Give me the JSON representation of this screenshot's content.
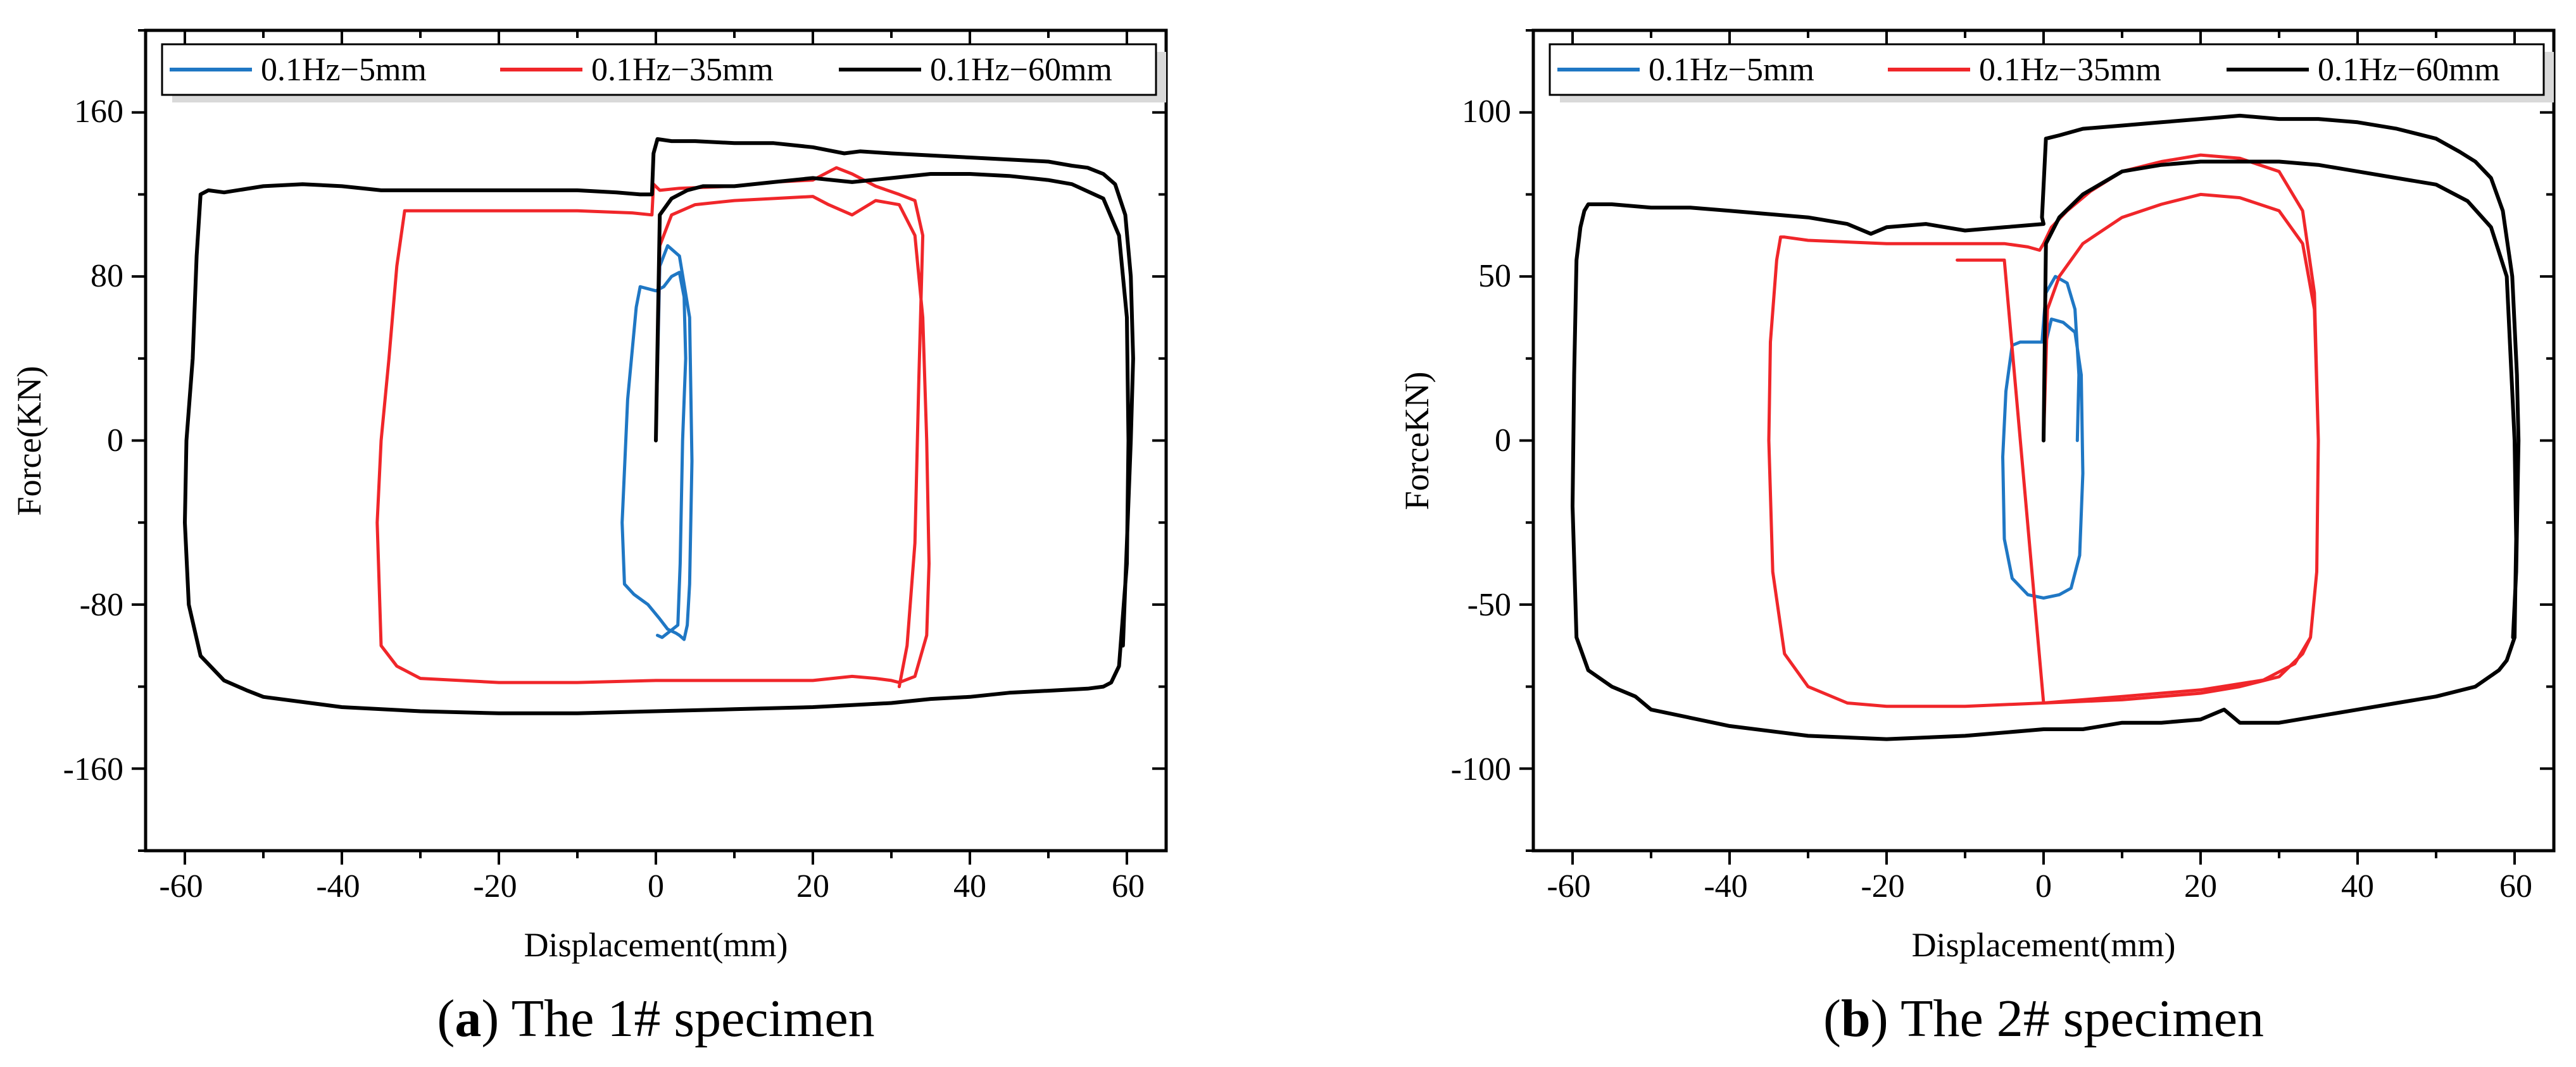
{
  "chart_data": [
    {
      "type": "line",
      "panel_id": "a",
      "caption_letter": "a",
      "caption_text": " The 1# specimen",
      "xlabel": "Displacement(mm)",
      "ylabel": "Force(KN)",
      "xlim": [
        -65,
        65
      ],
      "ylim": [
        -200,
        200
      ],
      "xticks": [
        -60,
        -40,
        -20,
        0,
        20,
        40,
        60
      ],
      "yticks": [
        -160,
        -80,
        0,
        80,
        160
      ],
      "xtick_labels": [
        "-60",
        "-40",
        "-20",
        "0",
        "20",
        "40",
        "60"
      ],
      "ytick_labels": [
        "-160",
        "-80",
        "0",
        "80",
        "160"
      ],
      "legend_position": "top",
      "series": [
        {
          "name": "0.1Hz−5mm",
          "color": "#1f77c4",
          "x": [
            0,
            0.5,
            1.5,
            3,
            4.3,
            4.6,
            4.3,
            4.0,
            3.6,
            3.0,
            2.6,
            1.5,
            0.5,
            -1,
            -2.8,
            -4.0,
            -4.3,
            -3.6,
            -2.5,
            -2.0,
            -1.0,
            0,
            1.0,
            2.0,
            3.0,
            3.6,
            3.8,
            3.4,
            3.1,
            2.8,
            0.8,
            0.2
          ],
          "y": [
            0,
            85,
            95,
            90,
            60,
            -10,
            -70,
            -90,
            -97,
            -95,
            -94,
            -92,
            -87,
            -80,
            -75,
            -70,
            -40,
            20,
            65,
            75,
            74,
            73,
            75,
            80,
            82,
            70,
            40,
            0,
            -60,
            -90,
            -96,
            -95
          ]
        },
        {
          "name": "0.1Hz−35mm",
          "color": "#f0262a",
          "x": [
            0,
            0.5,
            2,
            5,
            10,
            15,
            20,
            22,
            25,
            28,
            31,
            33,
            34,
            34.5,
            34.8,
            34.5,
            33,
            31,
            30,
            28,
            25,
            20,
            10,
            0,
            -10,
            -20,
            -30,
            -33,
            -35,
            -35.5,
            -35,
            -34,
            -33,
            -32,
            -30,
            -25,
            -20,
            -10,
            -3,
            -0.5,
            -0.3,
            0.5,
            3,
            10,
            15,
            20,
            23,
            25,
            28,
            31,
            33,
            34,
            33.5,
            33,
            32,
            31
          ],
          "y": [
            0,
            95,
            110,
            115,
            117,
            118,
            119,
            115,
            110,
            117,
            115,
            100,
            60,
            0,
            -60,
            -95,
            -115,
            -118,
            -117,
            -116,
            -115,
            -117,
            -117,
            -117,
            -118,
            -118,
            -116,
            -110,
            -100,
            -40,
            0,
            40,
            85,
            112,
            112,
            112,
            112,
            112,
            111,
            110,
            125,
            122,
            123,
            124,
            126,
            127,
            133,
            130,
            124,
            120,
            117,
            100,
            30,
            -50,
            -100,
            -120
          ]
        },
        {
          "name": "0.1Hz−60mm",
          "color": "#000000",
          "x": [
            0,
            0.5,
            2,
            4,
            6,
            10,
            15,
            20,
            25,
            30,
            35,
            40,
            45,
            50,
            53,
            57,
            59,
            60,
            60.2,
            60,
            59,
            58,
            57,
            55,
            50,
            45,
            40,
            35,
            30,
            25,
            20,
            10,
            0,
            -10,
            -20,
            -30,
            -40,
            -50,
            -52,
            -55,
            -58,
            -59.5,
            -60,
            -59.8,
            -59,
            -58.5,
            -58,
            -57,
            -55,
            -50,
            -45,
            -40,
            -35,
            -30,
            -20,
            -10,
            -5,
            -2,
            -0.5,
            -0.3,
            0.2,
            2,
            5,
            10,
            15,
            20,
            24,
            26,
            30,
            35,
            40,
            45,
            50,
            53,
            55,
            57,
            58.5,
            59.8,
            60.5,
            60.8,
            60.5,
            60,
            59.5
          ],
          "y": [
            0,
            110,
            118,
            122,
            124,
            124,
            126,
            128,
            126,
            128,
            130,
            130,
            129,
            127,
            125,
            118,
            100,
            60,
            0,
            -60,
            -110,
            -118,
            -120,
            -121,
            -122,
            -123,
            -125,
            -126,
            -128,
            -129,
            -130,
            -131,
            -132,
            -133,
            -133,
            -132,
            -130,
            -125,
            -122,
            -117,
            -105,
            -80,
            -40,
            0,
            40,
            90,
            120,
            122,
            121,
            124,
            125,
            124,
            122,
            122,
            122,
            122,
            121,
            120,
            120,
            140,
            147,
            146,
            146,
            145,
            145,
            143,
            140,
            141,
            140,
            139,
            138,
            137,
            136,
            134,
            133,
            130,
            125,
            110,
            80,
            40,
            0,
            -50,
            -100
          ]
        }
      ]
    },
    {
      "type": "line",
      "panel_id": "b",
      "caption_letter": "b",
      "caption_text": " The 2# specimen",
      "xlabel": "Displacement(mm)",
      "ylabel": "ForceKN)",
      "xlim": [
        -65,
        65
      ],
      "ylim": [
        -125,
        125
      ],
      "xticks": [
        -60,
        -40,
        -20,
        0,
        20,
        40,
        60
      ],
      "yticks": [
        -100,
        -50,
        0,
        50,
        100
      ],
      "xtick_labels": [
        "-60",
        "-40",
        "-20",
        "0",
        "20",
        "40",
        "60"
      ],
      "ytick_labels": [
        "-100",
        "-50",
        "0",
        "50",
        "100"
      ],
      "legend_position": "top",
      "series": [
        {
          "name": "0.1Hz−5mm",
          "color": "#1f77c4",
          "x": [
            0,
            0.3,
            1,
            2.5,
            4,
            4.8,
            5,
            4.6,
            3.5,
            2,
            0,
            -2,
            -4,
            -5,
            -5.2,
            -4.8,
            -4,
            -3,
            -2,
            -1,
            -0.2,
            0.3,
            1.5,
            3,
            4,
            4.5,
            4.3
          ],
          "y": [
            0,
            30,
            37,
            36,
            33,
            20,
            -10,
            -35,
            -45,
            -47,
            -48,
            -47,
            -42,
            -30,
            -5,
            15,
            29,
            30,
            30,
            30,
            30,
            45,
            50,
            48,
            40,
            20,
            0
          ]
        },
        {
          "name": "0.1Hz−35mm",
          "color": "#f0262a",
          "x": [
            0,
            0.5,
            2,
            5,
            10,
            15,
            20,
            25,
            30,
            33,
            34.5,
            35,
            34.8,
            34,
            33,
            30,
            25,
            20,
            10,
            0,
            -10,
            -20,
            -25,
            -30,
            -33,
            -34.5,
            -35,
            -34.8,
            -34,
            -33.5,
            -33,
            -30,
            -20,
            -10,
            -5,
            -2,
            -0.5,
            0,
            1,
            3,
            6,
            10,
            15,
            20,
            25,
            30,
            33,
            34.5,
            35,
            34.8,
            34,
            32,
            28,
            20,
            10,
            0,
            -5,
            -10,
            -11
          ],
          "y": [
            0,
            40,
            50,
            60,
            68,
            72,
            75,
            74,
            70,
            60,
            40,
            0,
            -40,
            -60,
            -65,
            -72,
            -75,
            -77,
            -79,
            -80,
            -81,
            -81,
            -80,
            -75,
            -65,
            -40,
            0,
            30,
            55,
            62,
            62,
            61,
            60,
            60,
            60,
            59,
            58,
            60,
            65,
            70,
            76,
            82,
            85,
            87,
            86,
            82,
            70,
            45,
            0,
            -40,
            -60,
            -68,
            -73,
            -76,
            -78,
            -80,
            55,
            55,
            55
          ]
        },
        {
          "name": "0.1Hz−60mm",
          "color": "#000000",
          "x": [
            0,
            0.3,
            2,
            5,
            10,
            15,
            20,
            25,
            30,
            35,
            40,
            45,
            50,
            54,
            57,
            59,
            60,
            60.2,
            60,
            59,
            58,
            55,
            50,
            45,
            40,
            35,
            30,
            25,
            23,
            20,
            15,
            10,
            5,
            0,
            -10,
            -20,
            -30,
            -40,
            -50,
            -52,
            -55,
            -58,
            -59.5,
            -60,
            -59.8,
            -59.5,
            -59,
            -58.5,
            -58,
            -55,
            -50,
            -45,
            -40,
            -35,
            -30,
            -25,
            -22,
            -20,
            -15,
            -10,
            -5,
            0,
            -0.2,
            0.3,
            2,
            5,
            10,
            15,
            20,
            25,
            30,
            35,
            40,
            45,
            50,
            53,
            55,
            57,
            58.5,
            59.7,
            60.3,
            60.5,
            60.2,
            59.8
          ],
          "y": [
            0,
            60,
            68,
            75,
            82,
            84,
            85,
            85,
            85,
            84,
            82,
            80,
            78,
            73,
            65,
            50,
            0,
            -30,
            -60,
            -67,
            -70,
            -75,
            -78,
            -80,
            -82,
            -84,
            -86,
            -86,
            -82,
            -85,
            -86,
            -86,
            -88,
            -88,
            -90,
            -91,
            -90,
            -87,
            -82,
            -78,
            -75,
            -70,
            -60,
            -20,
            20,
            55,
            65,
            70,
            72,
            72,
            71,
            71,
            70,
            69,
            68,
            66,
            63,
            65,
            66,
            64,
            65,
            66,
            68,
            92,
            93,
            95,
            96,
            97,
            98,
            99,
            98,
            98,
            97,
            95,
            92,
            88,
            85,
            80,
            70,
            50,
            20,
            0,
            -40,
            -60
          ]
        }
      ]
    }
  ]
}
